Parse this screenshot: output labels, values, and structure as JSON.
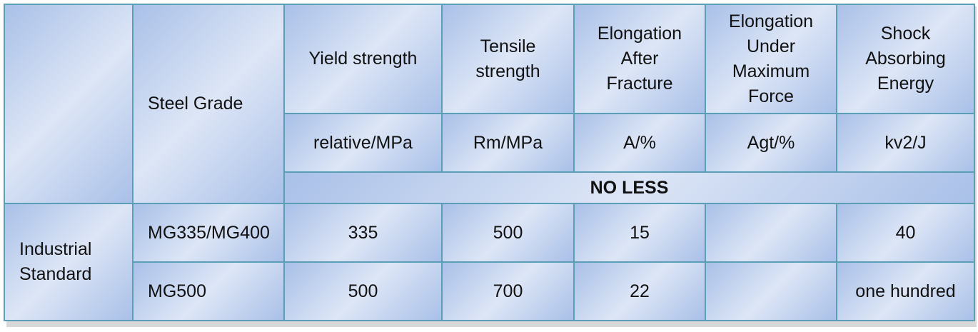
{
  "header": {
    "steel_grade": "Steel Grade",
    "columns": [
      [
        "Yield strength"
      ],
      [
        "Tensile",
        "strength"
      ],
      [
        "Elongation",
        "After",
        "Fracture"
      ],
      [
        "Elongation",
        "Under",
        "Maximum",
        "Force"
      ],
      [
        "Shock",
        "Absorbing",
        "Energy"
      ]
    ],
    "units": [
      "relative/MPa",
      "Rm/MPa",
      "A/%",
      "Agt/%",
      "kv2/J"
    ],
    "no_less": "NO LESS"
  },
  "body": {
    "category": [
      "Industrial",
      "Standard"
    ],
    "rows": [
      {
        "grade": "MG335/MG400",
        "yield": "335",
        "tensile": "500",
        "elong_fracture": "15",
        "elong_max": "",
        "energy": "40"
      },
      {
        "grade": "MG500",
        "yield": "500",
        "tensile": "700",
        "elong_fracture": "22",
        "elong_max": "",
        "energy": "one hundred"
      }
    ]
  }
}
